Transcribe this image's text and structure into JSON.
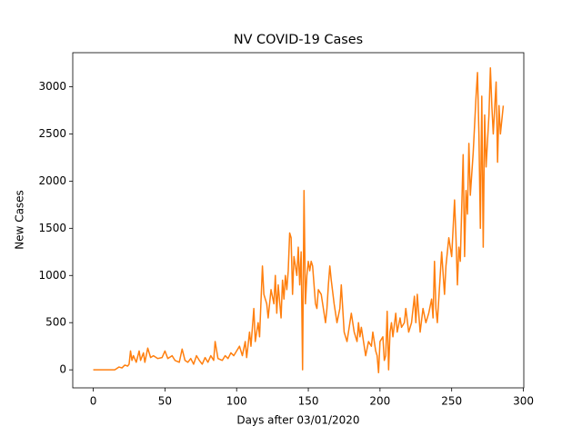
{
  "chart_data": {
    "type": "line",
    "title": "NV COVID-19 Cases",
    "xlabel": "Days after 03/01/2020",
    "ylabel": "New Cases",
    "x": [
      0,
      5,
      10,
      15,
      16,
      18,
      20,
      22,
      24,
      25,
      26,
      27,
      28,
      30,
      32,
      33,
      35,
      36,
      38,
      40,
      42,
      45,
      48,
      50,
      52,
      55,
      57,
      60,
      62,
      64,
      66,
      68,
      70,
      72,
      74,
      76,
      78,
      80,
      82,
      84,
      85,
      87,
      90,
      92,
      94,
      96,
      98,
      100,
      102,
      104,
      106,
      107,
      109,
      110,
      112,
      113,
      115,
      116,
      118,
      119,
      121,
      122,
      124,
      126,
      127,
      128,
      129,
      131,
      132,
      133,
      134,
      135,
      136,
      137,
      138,
      139,
      140,
      142,
      143,
      144,
      145,
      146,
      147,
      148,
      149,
      150,
      151,
      152,
      153,
      155,
      156,
      157,
      159,
      160,
      162,
      163,
      164,
      165,
      166,
      168,
      170,
      172,
      173,
      175,
      177,
      179,
      180,
      182,
      184,
      185,
      186,
      187,
      190,
      192,
      194,
      195,
      197,
      198,
      199,
      200,
      202,
      203,
      204,
      205,
      206,
      207,
      208,
      209,
      211,
      212,
      214,
      215,
      217,
      218,
      220,
      222,
      224,
      225,
      226,
      228,
      230,
      232,
      234,
      236,
      237,
      238,
      239,
      240,
      242,
      243,
      245,
      246,
      248,
      250,
      252,
      253,
      254,
      255,
      256,
      258,
      259,
      260,
      261,
      262,
      263,
      265,
      267,
      268,
      269,
      270,
      271,
      272,
      273,
      274,
      276,
      277,
      278,
      279,
      281,
      282,
      283,
      284,
      286
    ],
    "series": [
      {
        "color": "#ff7f0e",
        "values": [
          0,
          0,
          0,
          0,
          10,
          30,
          20,
          50,
          40,
          60,
          200,
          100,
          150,
          80,
          200,
          100,
          180,
          80,
          230,
          130,
          150,
          120,
          130,
          200,
          120,
          150,
          100,
          80,
          220,
          100,
          80,
          120,
          60,
          150,
          100,
          60,
          130,
          80,
          150,
          100,
          300,
          120,
          100,
          150,
          120,
          180,
          150,
          200,
          250,
          150,
          300,
          130,
          400,
          250,
          650,
          300,
          500,
          350,
          1100,
          800,
          700,
          550,
          850,
          700,
          1000,
          600,
          900,
          550,
          950,
          750,
          1000,
          850,
          1050,
          1450,
          1400,
          800,
          1200,
          1000,
          1300,
          900,
          1250,
          0,
          1900,
          700,
          1000,
          1150,
          1050,
          1150,
          1100,
          700,
          650,
          850,
          800,
          700,
          500,
          650,
          900,
          1100,
          950,
          700,
          500,
          650,
          900,
          400,
          300,
          500,
          600,
          400,
          300,
          500,
          350,
          450,
          150,
          300,
          250,
          400,
          200,
          150,
          -30,
          300,
          350,
          100,
          150,
          620,
          0,
          400,
          500,
          350,
          600,
          400,
          550,
          450,
          500,
          650,
          400,
          500,
          780,
          500,
          800,
          400,
          650,
          500,
          600,
          750,
          550,
          1150,
          650,
          500,
          1000,
          1250,
          800,
          1100,
          1400,
          1200,
          1800,
          1400,
          900,
          1300,
          1150,
          2280,
          1200,
          1900,
          1650,
          2400,
          1850,
          2300,
          2900,
          3150,
          2500,
          1500,
          2900,
          1300,
          2700,
          2150,
          2700,
          3200,
          2800,
          2500,
          3050,
          2200,
          2800,
          2500,
          2800
        ]
      }
    ],
    "xlim": [
      -14.3,
      300.3
    ],
    "ylim": [
      -191,
      3361
    ],
    "xticks": [
      0,
      50,
      100,
      150,
      200,
      250,
      300
    ],
    "yticks": [
      0,
      500,
      1000,
      1500,
      2000,
      2500,
      3000
    ],
    "grid": false
  }
}
